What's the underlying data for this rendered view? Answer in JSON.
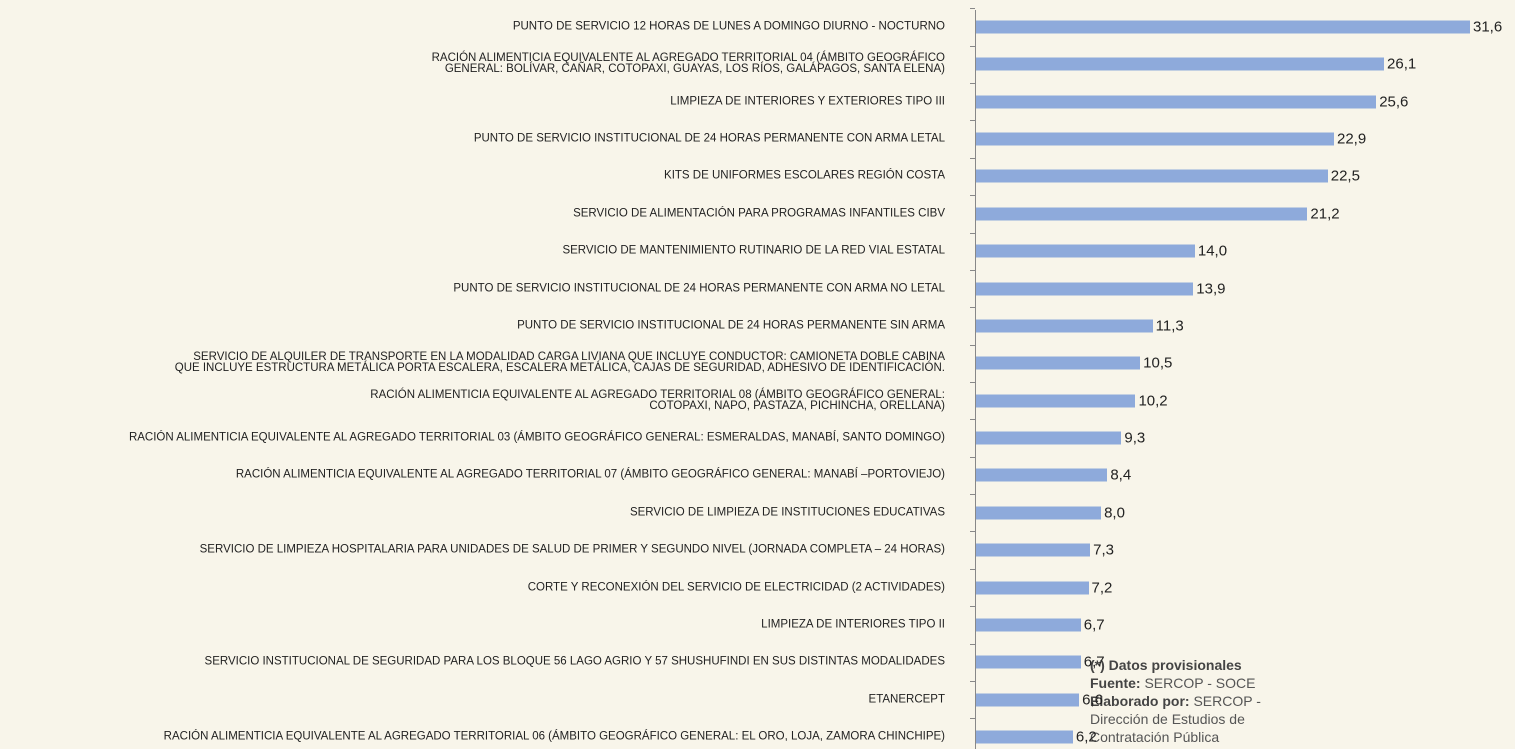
{
  "chart_data": {
    "type": "bar",
    "orientation": "horizontal",
    "color": "#8eaadb",
    "categories": [
      "PUNTO DE SERVICIO 12 HORAS DE LUNES A DOMINGO DIURNO - NOCTURNO",
      "RACIÓN ALIMENTICIA EQUIVALENTE AL AGREGADO TERRITORIAL 04 (ÁMBITO GEOGRÁFICO\nGENERAL: BOLÍVAR, CAÑAR, COTOPAXI, GUAYAS, LOS RÍOS, GALÁPAGOS, SANTA ELENA)",
      "LIMPIEZA DE INTERIORES Y EXTERIORES TIPO III",
      "PUNTO DE SERVICIO INSTITUCIONAL DE 24 HORAS PERMANENTE CON ARMA LETAL",
      "KITS DE UNIFORMES ESCOLARES REGIÓN COSTA",
      "SERVICIO DE ALIMENTACIÓN PARA PROGRAMAS INFANTILES CIBV",
      "SERVICIO DE MANTENIMIENTO RUTINARIO DE LA RED VIAL ESTATAL",
      "PUNTO DE SERVICIO INSTITUCIONAL DE 24 HORAS PERMANENTE CON ARMA NO LETAL",
      "PUNTO DE SERVICIO INSTITUCIONAL DE 24 HORAS PERMANENTE SIN ARMA",
      "SERVICIO DE ALQUILER DE TRANSPORTE EN LA MODALIDAD CARGA LIVIANA QUE INCLUYE CONDUCTOR: CAMIONETA DOBLE CABINA\nQUE INCLUYE ESTRUCTURA METÁLICA PORTA ESCALERA, ESCALERA METÁLICA, CAJAS DE SEGURIDAD, ADHESIVO DE IDENTIFICACIÓN.",
      "RACIÓN ALIMENTICIA EQUIVALENTE AL AGREGADO TERRITORIAL 08 (ÁMBITO GEOGRÁFICO GENERAL:\nCOTOPAXI, NAPO, PASTAZA, PICHINCHA, ORELLANA)",
      "RACIÓN ALIMENTICIA EQUIVALENTE AL AGREGADO TERRITORIAL 03 (ÁMBITO GEOGRÁFICO GENERAL: ESMERALDAS, MANABÍ, SANTO DOMINGO)",
      "RACIÓN ALIMENTICIA EQUIVALENTE AL AGREGADO TERRITORIAL 07 (ÁMBITO GEOGRÁFICO GENERAL: MANABÍ –PORTOVIEJO)",
      "SERVICIO DE LIMPIEZA DE INSTITUCIONES EDUCATIVAS",
      "SERVICIO DE LIMPIEZA HOSPITALARIA PARA UNIDADES DE SALUD DE PRIMER Y SEGUNDO NIVEL (JORNADA COMPLETA – 24 HORAS)",
      "CORTE Y RECONEXIÓN DEL SERVICIO DE ELECTRICIDAD (2 ACTIVIDADES)",
      "LIMPIEZA DE INTERIORES TIPO II",
      "SERVICIO INSTITUCIONAL DE SEGURIDAD PARA LOS BLOQUE 56 LAGO AGRIO Y 57 SHUSHUFINDI EN SUS DISTINTAS MODALIDADES",
      "ETANERCEPT",
      "RACIÓN ALIMENTICIA EQUIVALENTE AL AGREGADO TERRITORIAL 06 (ÁMBITO GEOGRÁFICO GENERAL: EL ORO, LOJA, ZAMORA CHINCHIPE)"
    ],
    "values": [
      31.6,
      26.1,
      25.6,
      22.9,
      22.5,
      21.2,
      14.0,
      13.9,
      11.3,
      10.5,
      10.2,
      9.3,
      8.4,
      8.0,
      7.3,
      7.2,
      6.7,
      6.7,
      6.6,
      6.2
    ],
    "value_labels": [
      "31,6",
      "26,1",
      "25,6",
      "22,9",
      "22,5",
      "21,2",
      "14,0",
      "13,9",
      "11,3",
      "10,5",
      "10,2",
      "9,3",
      "8,4",
      "8,0",
      "7,3",
      "7,2",
      "6,7",
      "6,7",
      "6,6",
      "6,2"
    ],
    "notes": {
      "title": "(*) Datos provisionales",
      "source_label": "Fuente:",
      "source": "SERCOP - SOCE",
      "author_label": "Elaborado por:",
      "author": "SERCOP - Dirección de Estudios de Contratación Pública"
    }
  }
}
